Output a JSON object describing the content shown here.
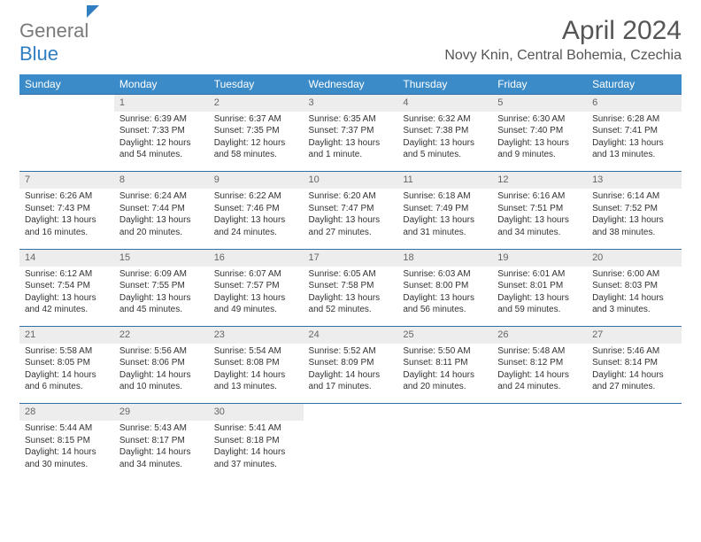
{
  "logo": {
    "general": "General",
    "blue": "Blue"
  },
  "title": "April 2024",
  "location": "Novy Knin, Central Bohemia, Czechia",
  "colors": {
    "header_bg": "#3b8bc9",
    "daynum_bg": "#ededed",
    "row_border": "#2f6ea8",
    "text": "#333333",
    "muted": "#666666",
    "logo_gray": "#7a7a7a",
    "logo_blue": "#2f7fc2"
  },
  "days_of_week": [
    "Sunday",
    "Monday",
    "Tuesday",
    "Wednesday",
    "Thursday",
    "Friday",
    "Saturday"
  ],
  "weeks": [
    [
      null,
      {
        "n": "1",
        "sunrise": "Sunrise: 6:39 AM",
        "sunset": "Sunset: 7:33 PM",
        "day1": "Daylight: 12 hours",
        "day2": "and 54 minutes."
      },
      {
        "n": "2",
        "sunrise": "Sunrise: 6:37 AM",
        "sunset": "Sunset: 7:35 PM",
        "day1": "Daylight: 12 hours",
        "day2": "and 58 minutes."
      },
      {
        "n": "3",
        "sunrise": "Sunrise: 6:35 AM",
        "sunset": "Sunset: 7:37 PM",
        "day1": "Daylight: 13 hours",
        "day2": "and 1 minute."
      },
      {
        "n": "4",
        "sunrise": "Sunrise: 6:32 AM",
        "sunset": "Sunset: 7:38 PM",
        "day1": "Daylight: 13 hours",
        "day2": "and 5 minutes."
      },
      {
        "n": "5",
        "sunrise": "Sunrise: 6:30 AM",
        "sunset": "Sunset: 7:40 PM",
        "day1": "Daylight: 13 hours",
        "day2": "and 9 minutes."
      },
      {
        "n": "6",
        "sunrise": "Sunrise: 6:28 AM",
        "sunset": "Sunset: 7:41 PM",
        "day1": "Daylight: 13 hours",
        "day2": "and 13 minutes."
      }
    ],
    [
      {
        "n": "7",
        "sunrise": "Sunrise: 6:26 AM",
        "sunset": "Sunset: 7:43 PM",
        "day1": "Daylight: 13 hours",
        "day2": "and 16 minutes."
      },
      {
        "n": "8",
        "sunrise": "Sunrise: 6:24 AM",
        "sunset": "Sunset: 7:44 PM",
        "day1": "Daylight: 13 hours",
        "day2": "and 20 minutes."
      },
      {
        "n": "9",
        "sunrise": "Sunrise: 6:22 AM",
        "sunset": "Sunset: 7:46 PM",
        "day1": "Daylight: 13 hours",
        "day2": "and 24 minutes."
      },
      {
        "n": "10",
        "sunrise": "Sunrise: 6:20 AM",
        "sunset": "Sunset: 7:47 PM",
        "day1": "Daylight: 13 hours",
        "day2": "and 27 minutes."
      },
      {
        "n": "11",
        "sunrise": "Sunrise: 6:18 AM",
        "sunset": "Sunset: 7:49 PM",
        "day1": "Daylight: 13 hours",
        "day2": "and 31 minutes."
      },
      {
        "n": "12",
        "sunrise": "Sunrise: 6:16 AM",
        "sunset": "Sunset: 7:51 PM",
        "day1": "Daylight: 13 hours",
        "day2": "and 34 minutes."
      },
      {
        "n": "13",
        "sunrise": "Sunrise: 6:14 AM",
        "sunset": "Sunset: 7:52 PM",
        "day1": "Daylight: 13 hours",
        "day2": "and 38 minutes."
      }
    ],
    [
      {
        "n": "14",
        "sunrise": "Sunrise: 6:12 AM",
        "sunset": "Sunset: 7:54 PM",
        "day1": "Daylight: 13 hours",
        "day2": "and 42 minutes."
      },
      {
        "n": "15",
        "sunrise": "Sunrise: 6:09 AM",
        "sunset": "Sunset: 7:55 PM",
        "day1": "Daylight: 13 hours",
        "day2": "and 45 minutes."
      },
      {
        "n": "16",
        "sunrise": "Sunrise: 6:07 AM",
        "sunset": "Sunset: 7:57 PM",
        "day1": "Daylight: 13 hours",
        "day2": "and 49 minutes."
      },
      {
        "n": "17",
        "sunrise": "Sunrise: 6:05 AM",
        "sunset": "Sunset: 7:58 PM",
        "day1": "Daylight: 13 hours",
        "day2": "and 52 minutes."
      },
      {
        "n": "18",
        "sunrise": "Sunrise: 6:03 AM",
        "sunset": "Sunset: 8:00 PM",
        "day1": "Daylight: 13 hours",
        "day2": "and 56 minutes."
      },
      {
        "n": "19",
        "sunrise": "Sunrise: 6:01 AM",
        "sunset": "Sunset: 8:01 PM",
        "day1": "Daylight: 13 hours",
        "day2": "and 59 minutes."
      },
      {
        "n": "20",
        "sunrise": "Sunrise: 6:00 AM",
        "sunset": "Sunset: 8:03 PM",
        "day1": "Daylight: 14 hours",
        "day2": "and 3 minutes."
      }
    ],
    [
      {
        "n": "21",
        "sunrise": "Sunrise: 5:58 AM",
        "sunset": "Sunset: 8:05 PM",
        "day1": "Daylight: 14 hours",
        "day2": "and 6 minutes."
      },
      {
        "n": "22",
        "sunrise": "Sunrise: 5:56 AM",
        "sunset": "Sunset: 8:06 PM",
        "day1": "Daylight: 14 hours",
        "day2": "and 10 minutes."
      },
      {
        "n": "23",
        "sunrise": "Sunrise: 5:54 AM",
        "sunset": "Sunset: 8:08 PM",
        "day1": "Daylight: 14 hours",
        "day2": "and 13 minutes."
      },
      {
        "n": "24",
        "sunrise": "Sunrise: 5:52 AM",
        "sunset": "Sunset: 8:09 PM",
        "day1": "Daylight: 14 hours",
        "day2": "and 17 minutes."
      },
      {
        "n": "25",
        "sunrise": "Sunrise: 5:50 AM",
        "sunset": "Sunset: 8:11 PM",
        "day1": "Daylight: 14 hours",
        "day2": "and 20 minutes."
      },
      {
        "n": "26",
        "sunrise": "Sunrise: 5:48 AM",
        "sunset": "Sunset: 8:12 PM",
        "day1": "Daylight: 14 hours",
        "day2": "and 24 minutes."
      },
      {
        "n": "27",
        "sunrise": "Sunrise: 5:46 AM",
        "sunset": "Sunset: 8:14 PM",
        "day1": "Daylight: 14 hours",
        "day2": "and 27 minutes."
      }
    ],
    [
      {
        "n": "28",
        "sunrise": "Sunrise: 5:44 AM",
        "sunset": "Sunset: 8:15 PM",
        "day1": "Daylight: 14 hours",
        "day2": "and 30 minutes."
      },
      {
        "n": "29",
        "sunrise": "Sunrise: 5:43 AM",
        "sunset": "Sunset: 8:17 PM",
        "day1": "Daylight: 14 hours",
        "day2": "and 34 minutes."
      },
      {
        "n": "30",
        "sunrise": "Sunrise: 5:41 AM",
        "sunset": "Sunset: 8:18 PM",
        "day1": "Daylight: 14 hours",
        "day2": "and 37 minutes."
      },
      null,
      null,
      null,
      null
    ]
  ]
}
